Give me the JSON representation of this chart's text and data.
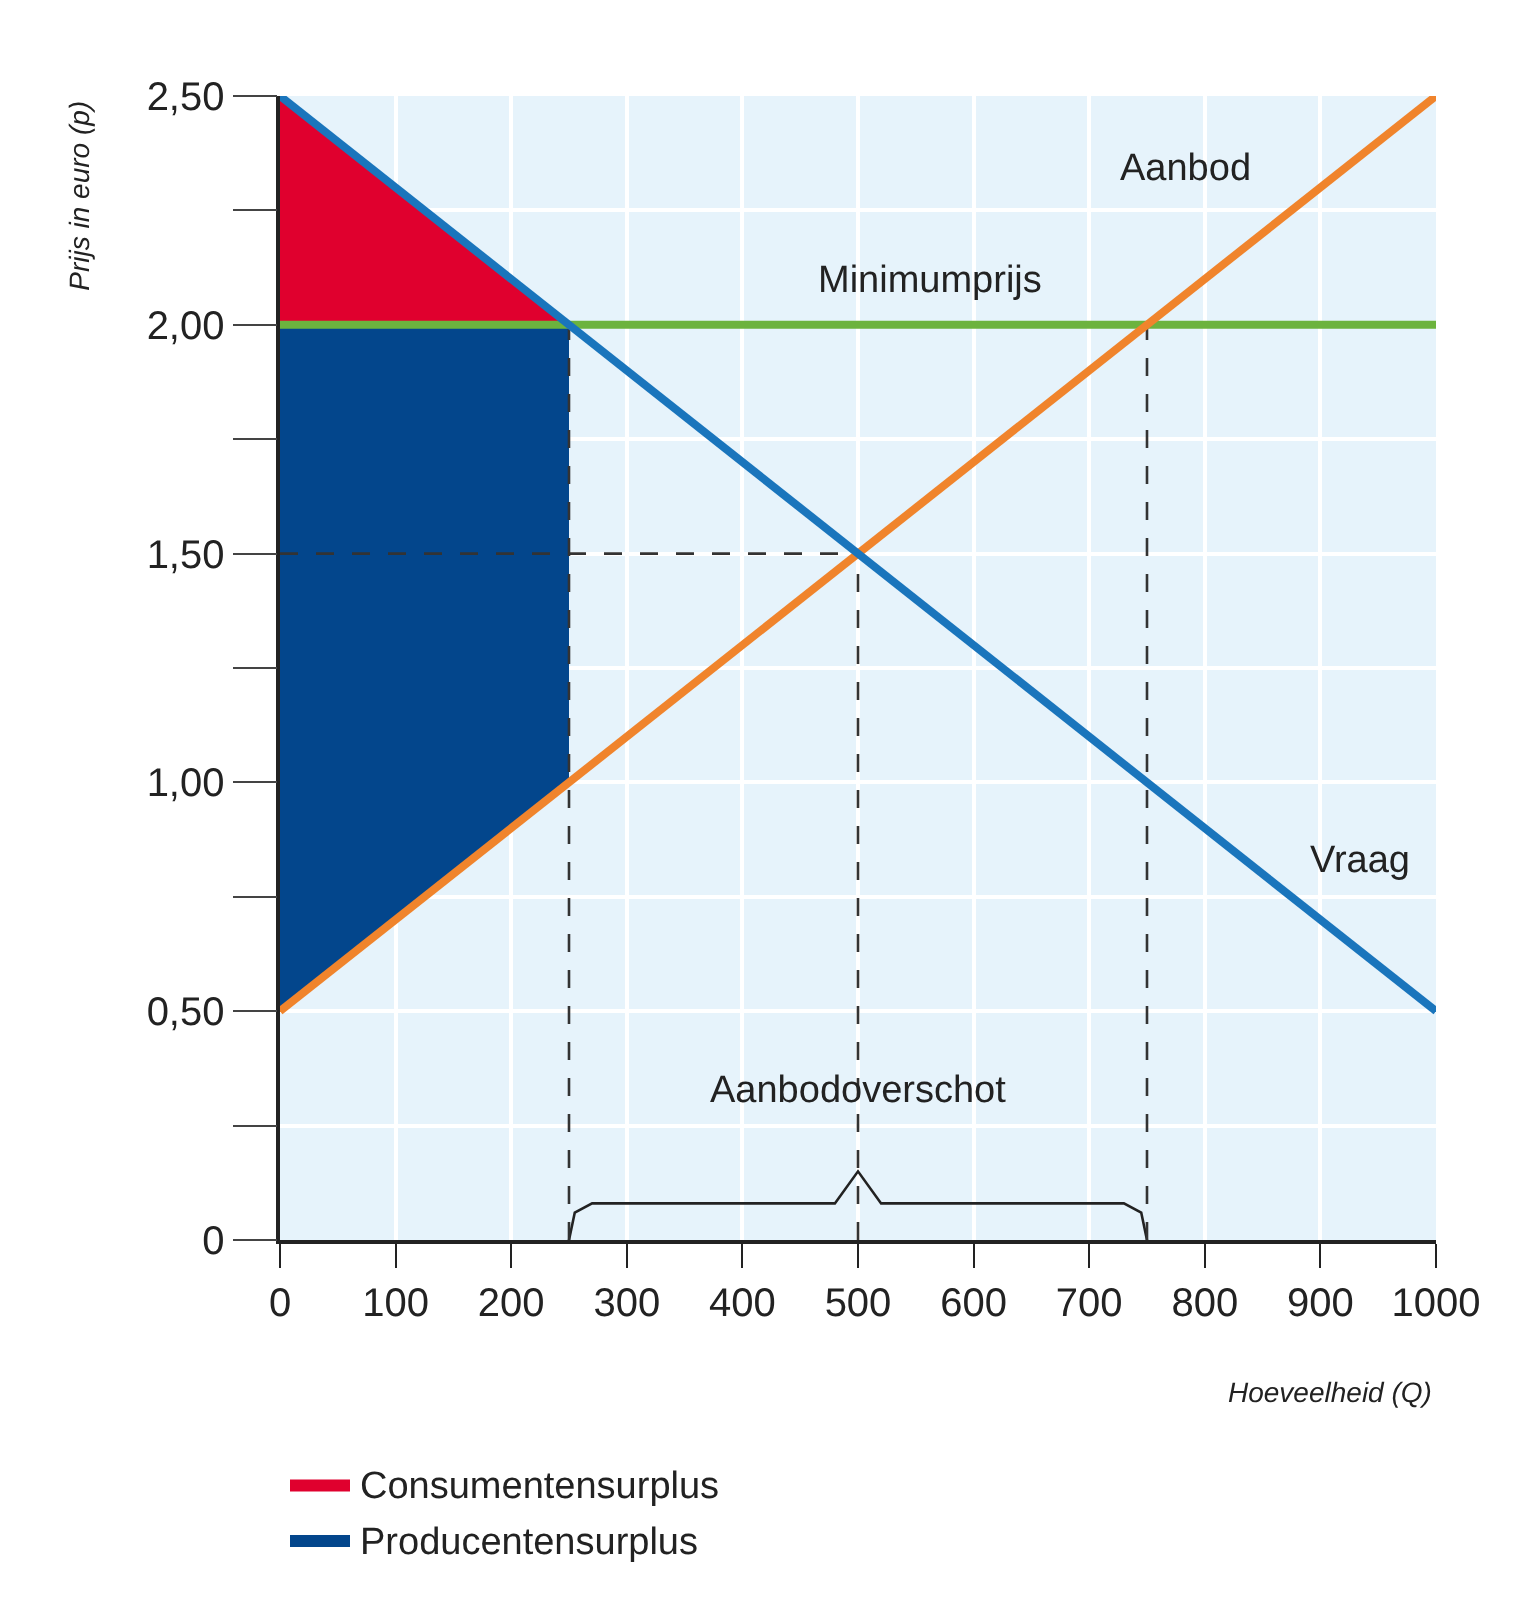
{
  "chart_data": {
    "type": "line",
    "xlabel": "Hoeveelheid (Q)",
    "ylabel": "Prijs in euro (p)",
    "xlim": [
      0,
      1000
    ],
    "xticks": [
      0,
      100,
      200,
      300,
      400,
      500,
      600,
      700,
      800,
      900,
      1000
    ],
    "ylim": [
      0,
      2.5
    ],
    "yticks": [
      0,
      {
        "value": 0.25,
        "label": null
      },
      {
        "value": 0.5,
        "label": "0,50"
      },
      {
        "value": 0.75,
        "label": null
      },
      {
        "value": 1.0,
        "label": "1,00"
      },
      {
        "value": 1.25,
        "label": null
      },
      {
        "value": 1.5,
        "label": "1,50"
      },
      {
        "value": 1.75,
        "label": null
      },
      {
        "value": 2.0,
        "label": "2,00"
      },
      {
        "value": 2.25,
        "label": null
      },
      {
        "value": 2.5,
        "label": "2,50"
      }
    ],
    "grid": true,
    "legend": "bottom left",
    "annotations": [
      {
        "text": "Aanbodoverschot",
        "x": 500,
        "y": 0.27
      }
    ],
    "series": [
      {
        "type": "area",
        "name": "Consumentensurplus",
        "color": "#e0002e",
        "x": [
          0,
          250,
          0
        ],
        "values": [
          2.5,
          2.0,
          2.0
        ]
      },
      {
        "type": "area",
        "name": "Producentensurplus",
        "color": "#03468c",
        "x": [
          0,
          250,
          250,
          0
        ],
        "values": [
          2.0,
          2.0,
          1.0,
          0.5
        ]
      },
      {
        "color": "#222222",
        "x": [
          250,
          255,
          270,
          480,
          500,
          520,
          730,
          745,
          750
        ],
        "values": [
          0,
          0.06,
          0.08,
          0.08,
          0.15,
          0.08,
          0.08,
          0.06,
          0
        ]
      },
      {
        "color": "#333333",
        "line_style": "dashed",
        "x": [
          0,
          500
        ],
        "values": [
          1.5,
          1.5
        ]
      },
      {
        "color": "#333333",
        "line_style": "dashed",
        "x": [
          250,
          250
        ],
        "values": [
          0,
          2.0
        ]
      },
      {
        "color": "#333333",
        "line_style": "dashed",
        "x": [
          500,
          500
        ],
        "values": [
          0,
          1.5
        ]
      },
      {
        "color": "#333333",
        "line_style": "dashed",
        "x": [
          750,
          750
        ],
        "values": [
          0,
          2.0
        ]
      },
      {
        "name": "Minimumprijs",
        "color": "#6cb33e",
        "x": [
          0,
          1000
        ],
        "values": [
          2.0,
          2.0
        ]
      },
      {
        "name": "Aanbod",
        "color": "#f0842c",
        "x": [
          0,
          1000
        ],
        "values": [
          0.5,
          2.5
        ]
      },
      {
        "name": "Vraag",
        "color": "#1a75bc",
        "x": [
          0,
          1000
        ],
        "values": [
          2.5,
          0.5
        ]
      }
    ]
  }
}
